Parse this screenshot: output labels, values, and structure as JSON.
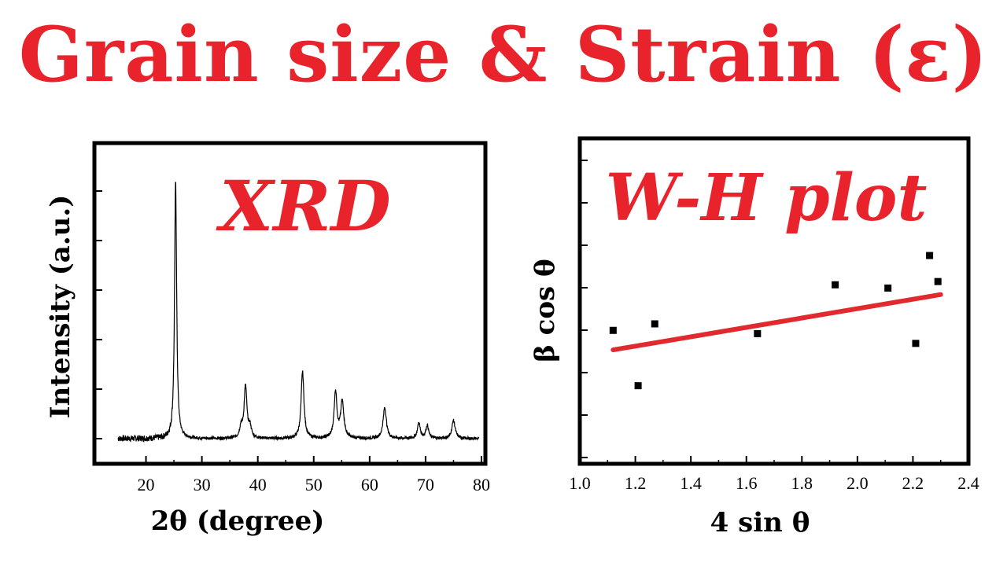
{
  "title": "Grain size & Strain (ε)",
  "colors": {
    "title": "#e8232b",
    "fit_line": "#e02a2e",
    "ink": "#000000"
  },
  "chart_data": [
    {
      "type": "line",
      "panel_label": "XRD",
      "xlabel": "2θ  (degree)",
      "ylabel": "Intensity (a.u.)",
      "xlim": [
        15,
        80
      ],
      "x_ticks": [
        20,
        30,
        40,
        50,
        60,
        70,
        80
      ],
      "ylim": [
        0,
        100
      ],
      "y_ticks_labeled": false,
      "baseline": 2,
      "peaks": [
        {
          "x": 25.3,
          "height": 100,
          "width": 0.22
        },
        {
          "x": 37.0,
          "height": 4,
          "width": 0.3
        },
        {
          "x": 37.8,
          "height": 20,
          "width": 0.3
        },
        {
          "x": 38.6,
          "height": 4,
          "width": 0.3
        },
        {
          "x": 48.0,
          "height": 26,
          "width": 0.3
        },
        {
          "x": 53.9,
          "height": 18,
          "width": 0.3
        },
        {
          "x": 55.1,
          "height": 14,
          "width": 0.35
        },
        {
          "x": 62.7,
          "height": 12,
          "width": 0.35
        },
        {
          "x": 68.8,
          "height": 6,
          "width": 0.3
        },
        {
          "x": 70.3,
          "height": 5,
          "width": 0.3
        },
        {
          "x": 75.0,
          "height": 7,
          "width": 0.35
        }
      ]
    },
    {
      "type": "scatter",
      "panel_label": "W-H plot",
      "xlabel": "4 sin θ",
      "ylabel": "β cos θ",
      "xlim": [
        1.0,
        2.4
      ],
      "x_ticks": [
        1.0,
        1.2,
        1.4,
        1.6,
        1.8,
        2.0,
        2.2,
        2.4
      ],
      "ylim": [
        0,
        100
      ],
      "y_ticks_labeled": false,
      "points": [
        {
          "x": 1.12,
          "y": 41
        },
        {
          "x": 1.21,
          "y": 24
        },
        {
          "x": 1.27,
          "y": 43
        },
        {
          "x": 1.64,
          "y": 40
        },
        {
          "x": 1.92,
          "y": 55
        },
        {
          "x": 2.11,
          "y": 54
        },
        {
          "x": 2.21,
          "y": 37
        },
        {
          "x": 2.26,
          "y": 64
        },
        {
          "x": 2.29,
          "y": 56
        }
      ],
      "fit_line": {
        "x": [
          1.12,
          2.3
        ],
        "y": [
          35,
          52
        ]
      }
    }
  ]
}
